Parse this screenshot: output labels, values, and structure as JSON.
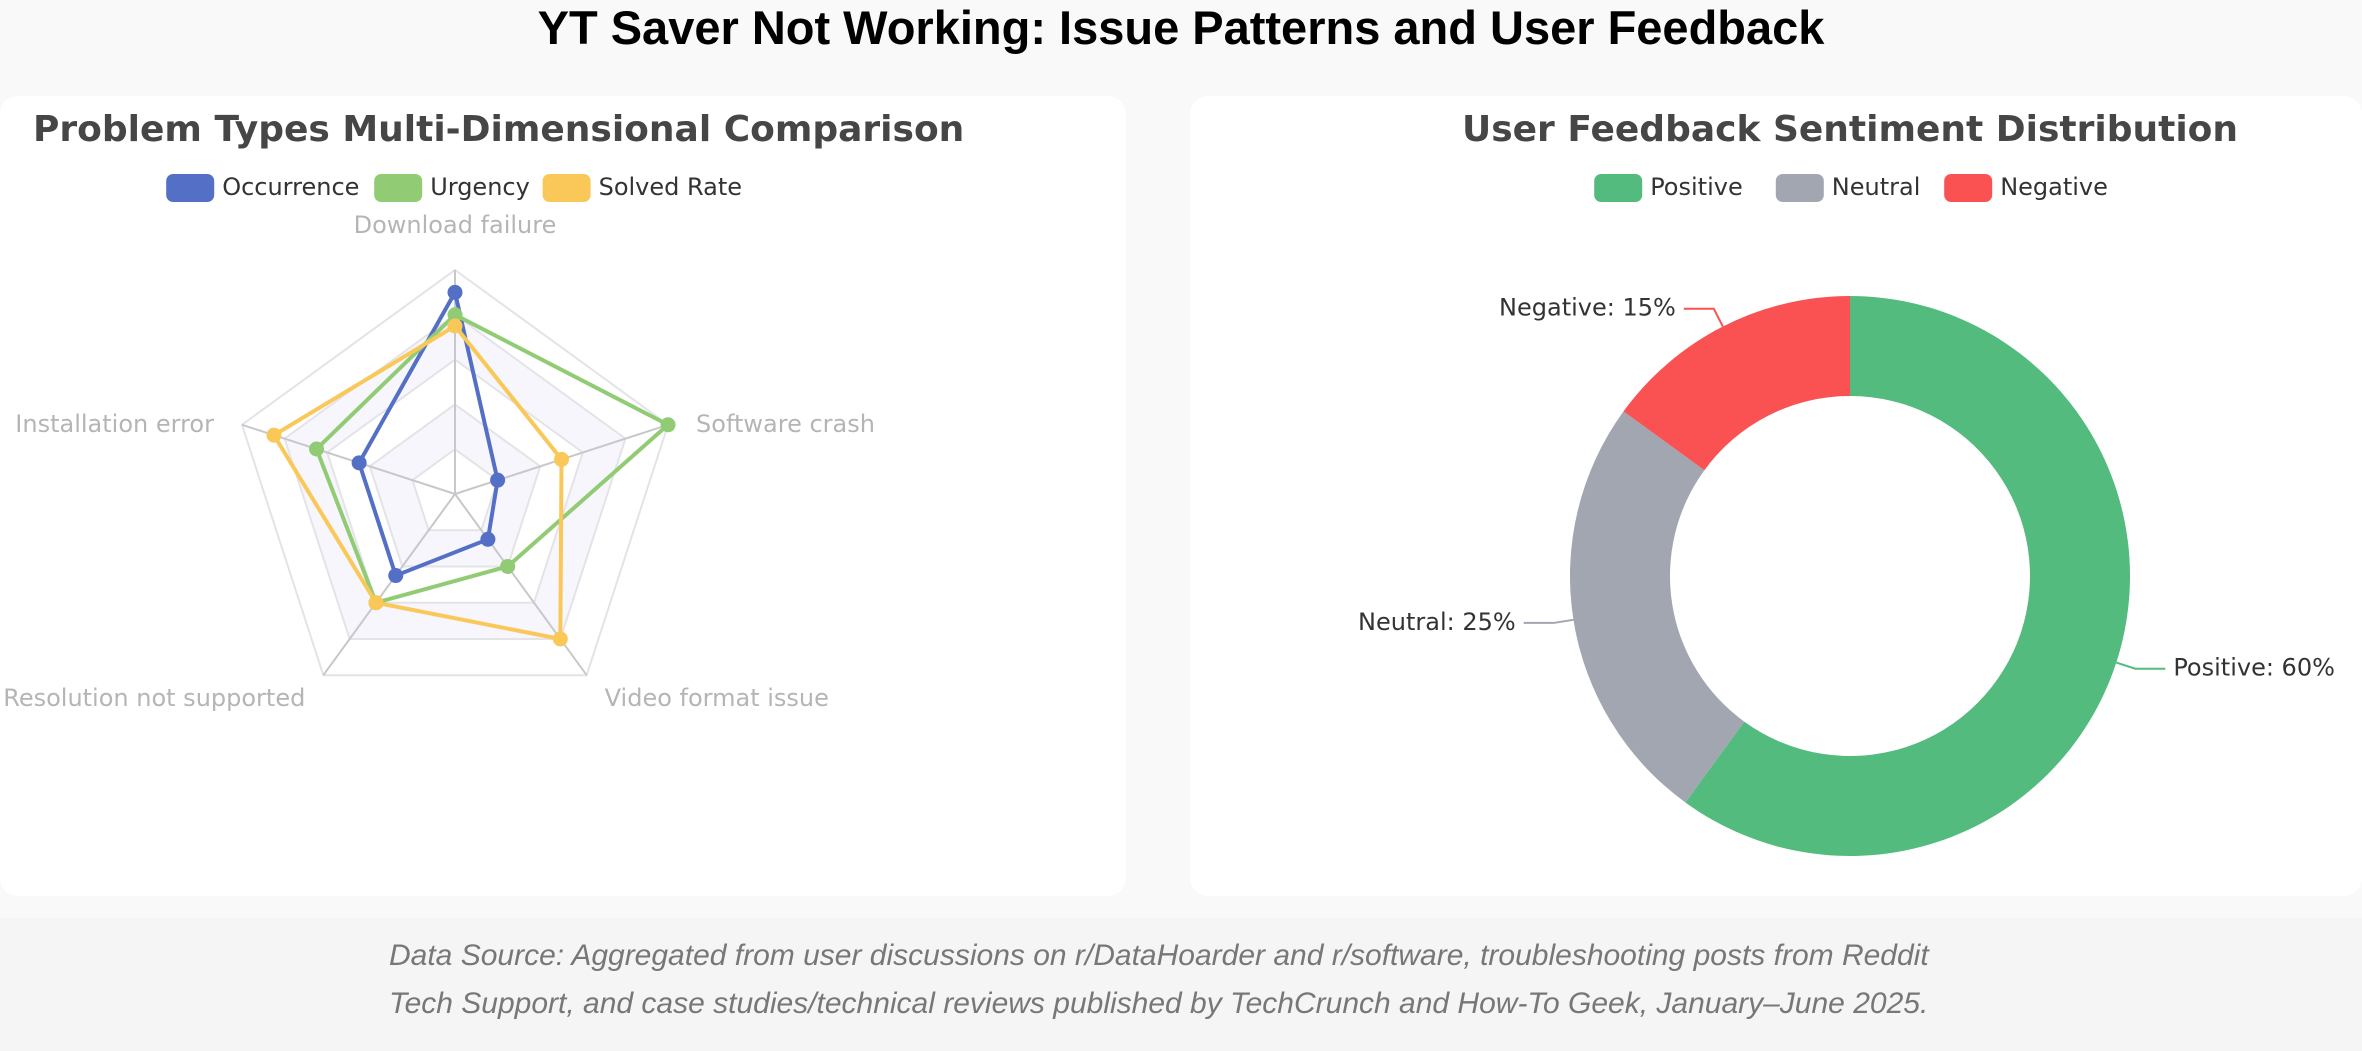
{
  "page": {
    "title": "YT Saver Not Working: Issue Patterns and User Feedback"
  },
  "footer": {
    "source_line1": "Data Source: Aggregated from user discussions on r/DataHoarder and r/software, troubleshooting posts from Reddit",
    "source_line2": "Tech Support, and case studies/technical reviews published by TechCrunch and How-To Geek, January–June 2025."
  },
  "chart_data": [
    {
      "type": "radar",
      "title": "Problem Types Multi-Dimensional Comparison",
      "indicators": [
        "Download failure",
        "Software crash",
        "Video format issue",
        "Resolution not supported",
        "Installation error"
      ],
      "max": 100,
      "series": [
        {
          "name": "Occurrence",
          "color": "#5470c6",
          "values": [
            90,
            20,
            25,
            45,
            45
          ]
        },
        {
          "name": "Urgency",
          "color": "#91cc75",
          "values": [
            80,
            100,
            40,
            60,
            65
          ]
        },
        {
          "name": "Solved Rate",
          "color": "#fac858",
          "values": [
            75,
            50,
            80,
            60,
            85
          ]
        }
      ],
      "legend_position": "top-center",
      "split_number": 5
    },
    {
      "type": "pie",
      "title": "User Feedback Sentiment Distribution",
      "style": "donut",
      "series": [
        {
          "name": "Positive",
          "color": "#52bb7d",
          "value": 60,
          "label": "Positive: 60%"
        },
        {
          "name": "Neutral",
          "color": "#a2a6b0",
          "value": 25,
          "label": "Neutral: 25%"
        },
        {
          "name": "Negative",
          "color": "#fa5253",
          "value": 15,
          "label": "Negative: 15%"
        }
      ],
      "legend_position": "top-center"
    }
  ]
}
